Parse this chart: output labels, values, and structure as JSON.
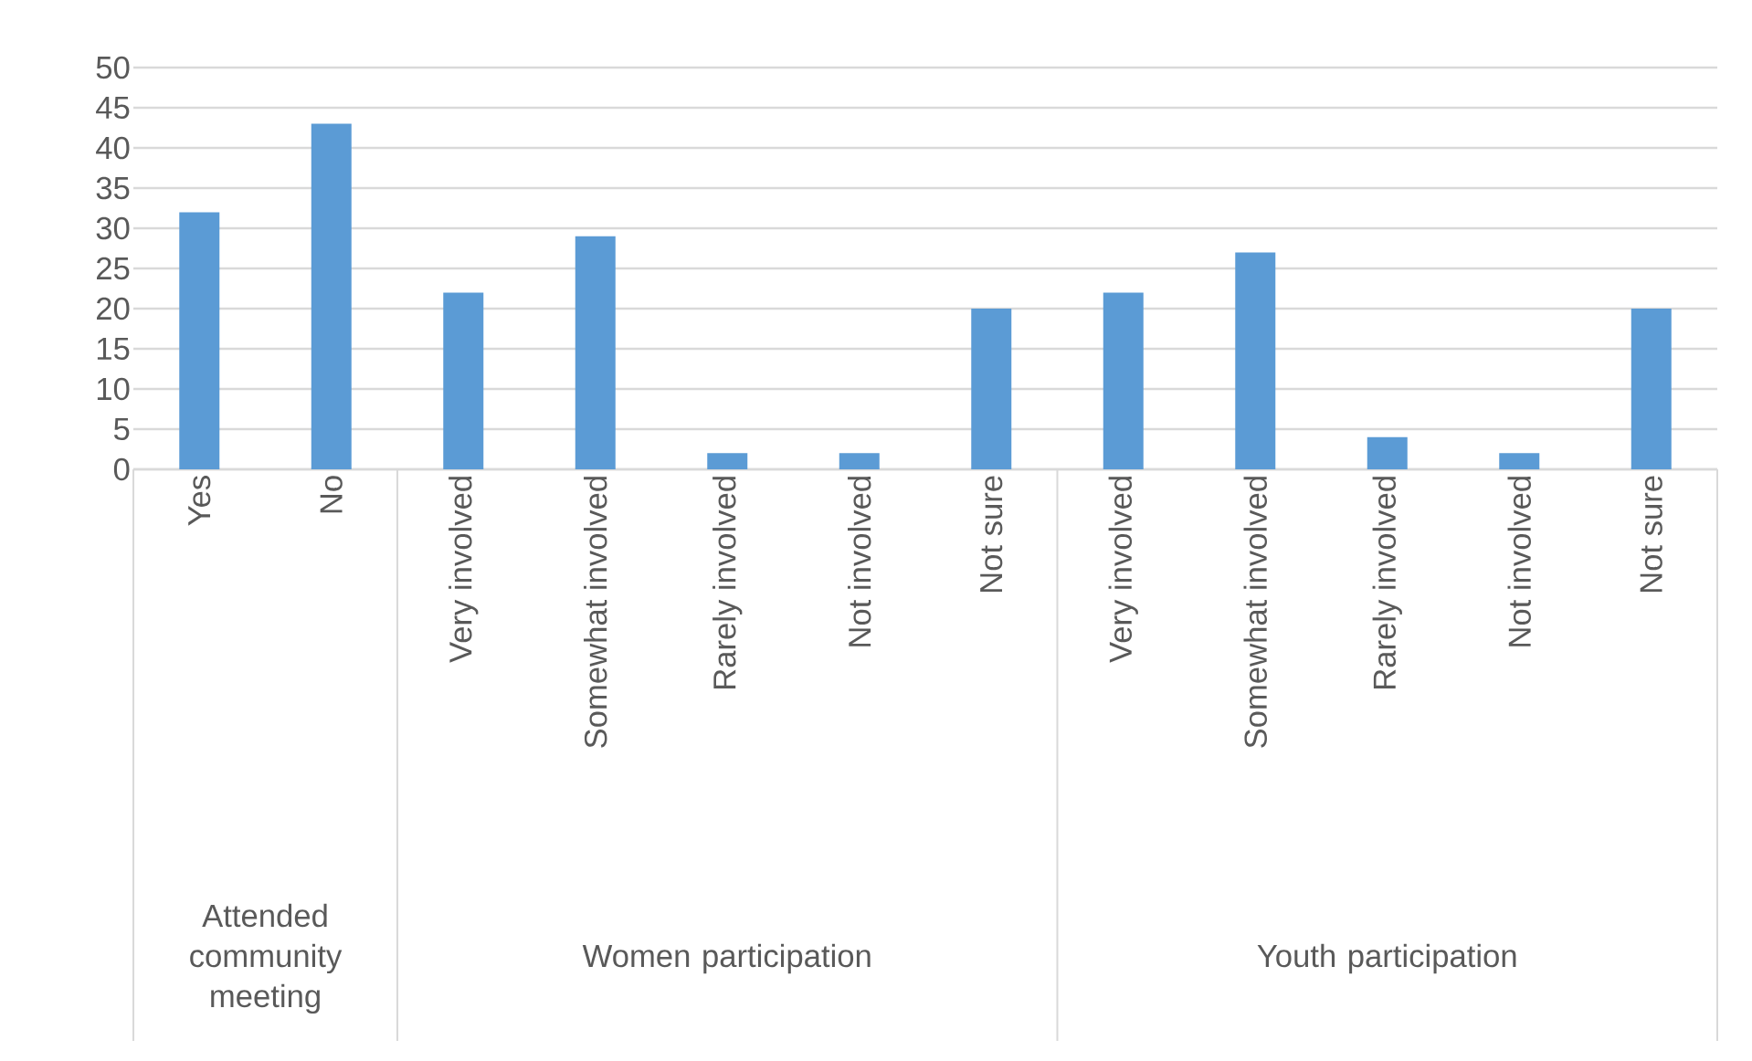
{
  "chart_data": {
    "type": "bar",
    "categories": [
      "Yes",
      "No",
      "Very involved",
      "Somewhat involved",
      "Rarely involved",
      "Not involved",
      "Not sure",
      "Very involved",
      "Somewhat involved",
      "Rarely involved",
      "Not involved",
      "Not sure"
    ],
    "values": [
      32,
      43,
      22,
      29,
      2,
      2,
      20,
      22,
      27,
      4,
      2,
      20
    ],
    "color": "#5b9bd5",
    "ylim": [
      0,
      50
    ],
    "yticks": [
      0,
      5,
      10,
      15,
      20,
      25,
      30,
      35,
      40,
      45,
      50
    ],
    "grid": "y",
    "annotations": [
      "Attended community meeting",
      "Women participation",
      "Youth participation"
    ]
  }
}
